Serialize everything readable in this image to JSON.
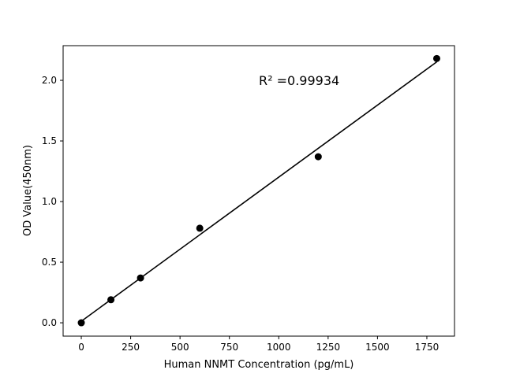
{
  "chart_data": {
    "type": "scatter",
    "title": "",
    "xlabel": "Human NNMT Concentration (pg/mL)",
    "ylabel": "OD Value(450nm)",
    "xlim": [
      -92,
      1890
    ],
    "ylim": [
      -0.11,
      2.286
    ],
    "xticks": [
      0,
      250,
      500,
      750,
      1000,
      1250,
      1500,
      1750
    ],
    "yticks": [
      0.0,
      0.5,
      1.0,
      1.5,
      2.0
    ],
    "ytick_labels": [
      "0.0",
      "0.5",
      "1.0",
      "1.5",
      "2.0"
    ],
    "grid": false,
    "points": {
      "x": [
        0,
        150,
        300,
        600,
        1200,
        1800
      ],
      "y": [
        0.0,
        0.19,
        0.37,
        0.78,
        1.37,
        2.18
      ]
    },
    "fit_line": {
      "slope": 0.0011885,
      "intercept": 0.0128,
      "x_range": [
        0,
        1800
      ]
    },
    "annotation": "R² =0.99934",
    "colors": {
      "points": "#000000",
      "line": "#000000"
    }
  }
}
